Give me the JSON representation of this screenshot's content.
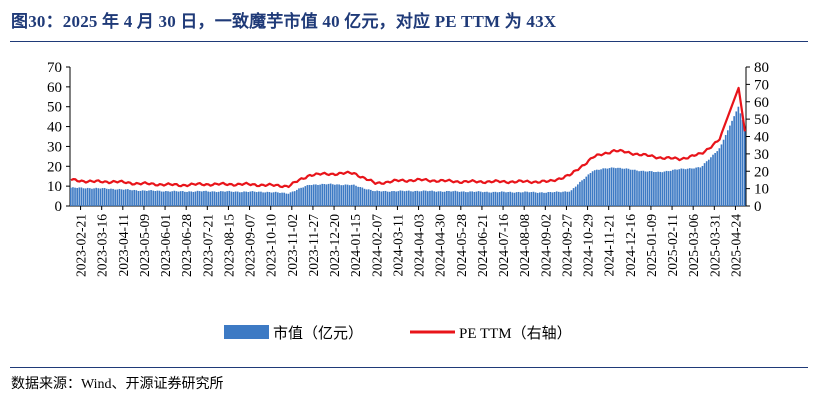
{
  "header": {
    "title": "图30：2025 年 4 月 30 日，一致魔芋市值 40 亿元，对应 PE TTM 为 43X"
  },
  "footer": {
    "source": "数据来源：Wind、开源证券研究所"
  },
  "colors": {
    "title": "#1f3a78",
    "bars": "#3d7ac4",
    "line": "#e8141a",
    "rule": "#1f3a78"
  },
  "chart_data": {
    "type": "bar+line",
    "grid": false,
    "legend_position": "bottom-center",
    "y_left": {
      "ticks": [
        0,
        10,
        20,
        30,
        40,
        50,
        60,
        70
      ],
      "ylim": [
        0,
        70
      ]
    },
    "y_right": {
      "ticks": [
        0,
        10,
        20,
        30,
        40,
        50,
        60,
        70,
        80
      ],
      "ylim": [
        0,
        80
      ]
    },
    "x_tick_labels": [
      "2023-02-21",
      "2023-03-16",
      "2023-04-11",
      "2023-05-09",
      "2023-06-01",
      "2023-06-28",
      "2023-07-21",
      "2023-08-15",
      "2023-09-07",
      "2023-10-10",
      "2023-11-02",
      "2023-11-27",
      "2023-12-20",
      "2024-01-15",
      "2024-02-07",
      "2024-03-11",
      "2024-04-03",
      "2024-04-30",
      "2024-05-28",
      "2024-06-21",
      "2024-07-16",
      "2024-08-08",
      "2024-09-02",
      "2024-09-27",
      "2024-10-29",
      "2024-11-21",
      "2024-12-16",
      "2025-01-09",
      "2025-02-11",
      "2025-03-06",
      "2025-03-31",
      "2025-04-24"
    ],
    "series": [
      {
        "name": "市值（亿元）",
        "type": "bar",
        "axis": "left",
        "values": [
          9.2,
          9.0,
          8.6,
          7.9,
          7.6,
          7.3,
          7.4,
          7.3,
          7.2,
          7.1,
          6.4,
          10.8,
          11.0,
          10.5,
          7.4,
          7.5,
          7.6,
          7.4,
          7.3,
          7.1,
          7.0,
          7.0,
          6.8,
          7.5,
          17.8,
          19.5,
          18.0,
          17.0,
          18.5,
          19.5,
          31.0,
          40.0
        ]
      },
      {
        "name": "PE TTM（右轴）",
        "type": "line",
        "axis": "right",
        "values": [
          15.0,
          14.0,
          14.0,
          13.0,
          12.5,
          12.0,
          12.5,
          12.5,
          12.5,
          12.0,
          11.5,
          18.0,
          18.5,
          19.0,
          13.0,
          14.5,
          15.0,
          14.5,
          14.0,
          14.0,
          14.0,
          14.0,
          14.0,
          18.0,
          28.0,
          32.0,
          30.0,
          28.0,
          27.0,
          30.0,
          40.0,
          43.0
        ]
      }
    ],
    "annotations": {
      "max_bar": 50.0,
      "max_pe": 68.0
    }
  }
}
